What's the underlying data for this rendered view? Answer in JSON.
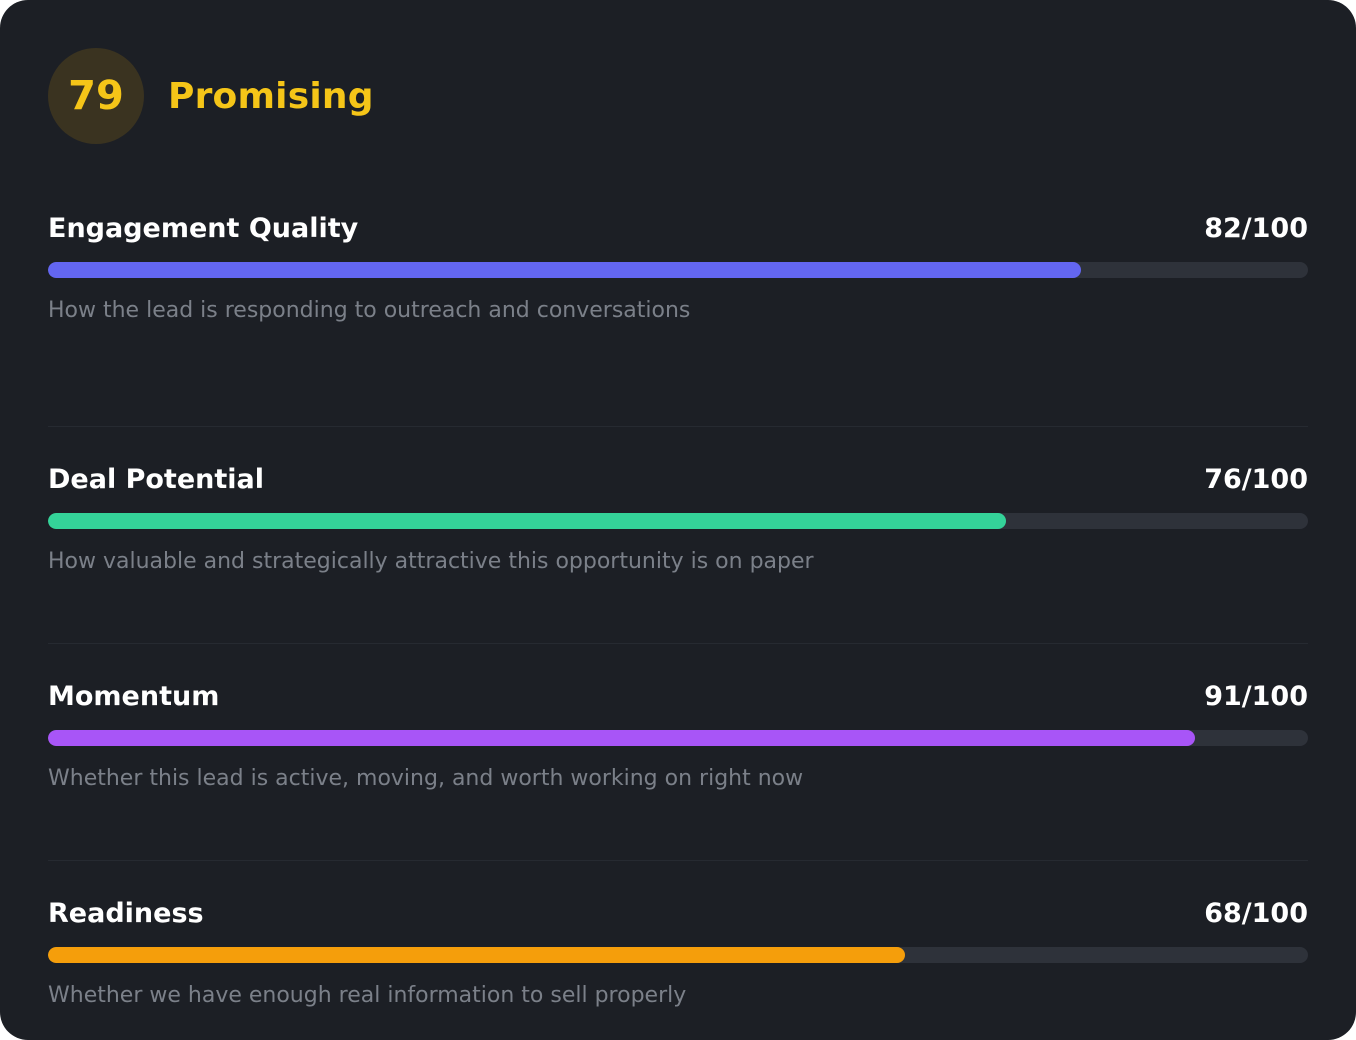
{
  "summary": {
    "score": "79",
    "verdict": "Promising",
    "accent_color": "#f5c518"
  },
  "metrics": [
    {
      "name": "Engagement Quality",
      "score_text": "82/100",
      "score": 82,
      "max": 100,
      "description": "How the lead is responding to outreach and conversations",
      "color": "#6366f1"
    },
    {
      "name": "Deal Potential",
      "score_text": "76/100",
      "score": 76,
      "max": 100,
      "description": "How valuable and strategically attractive this opportunity is on paper",
      "color": "#34d399"
    },
    {
      "name": "Momentum",
      "score_text": "91/100",
      "score": 91,
      "max": 100,
      "description": "Whether this lead is active, moving, and worth working on right now",
      "color": "#a855f7"
    },
    {
      "name": "Readiness",
      "score_text": "68/100",
      "score": 68,
      "max": 100,
      "description": "Whether we have enough real information to sell properly",
      "color": "#f59e0b"
    }
  ]
}
